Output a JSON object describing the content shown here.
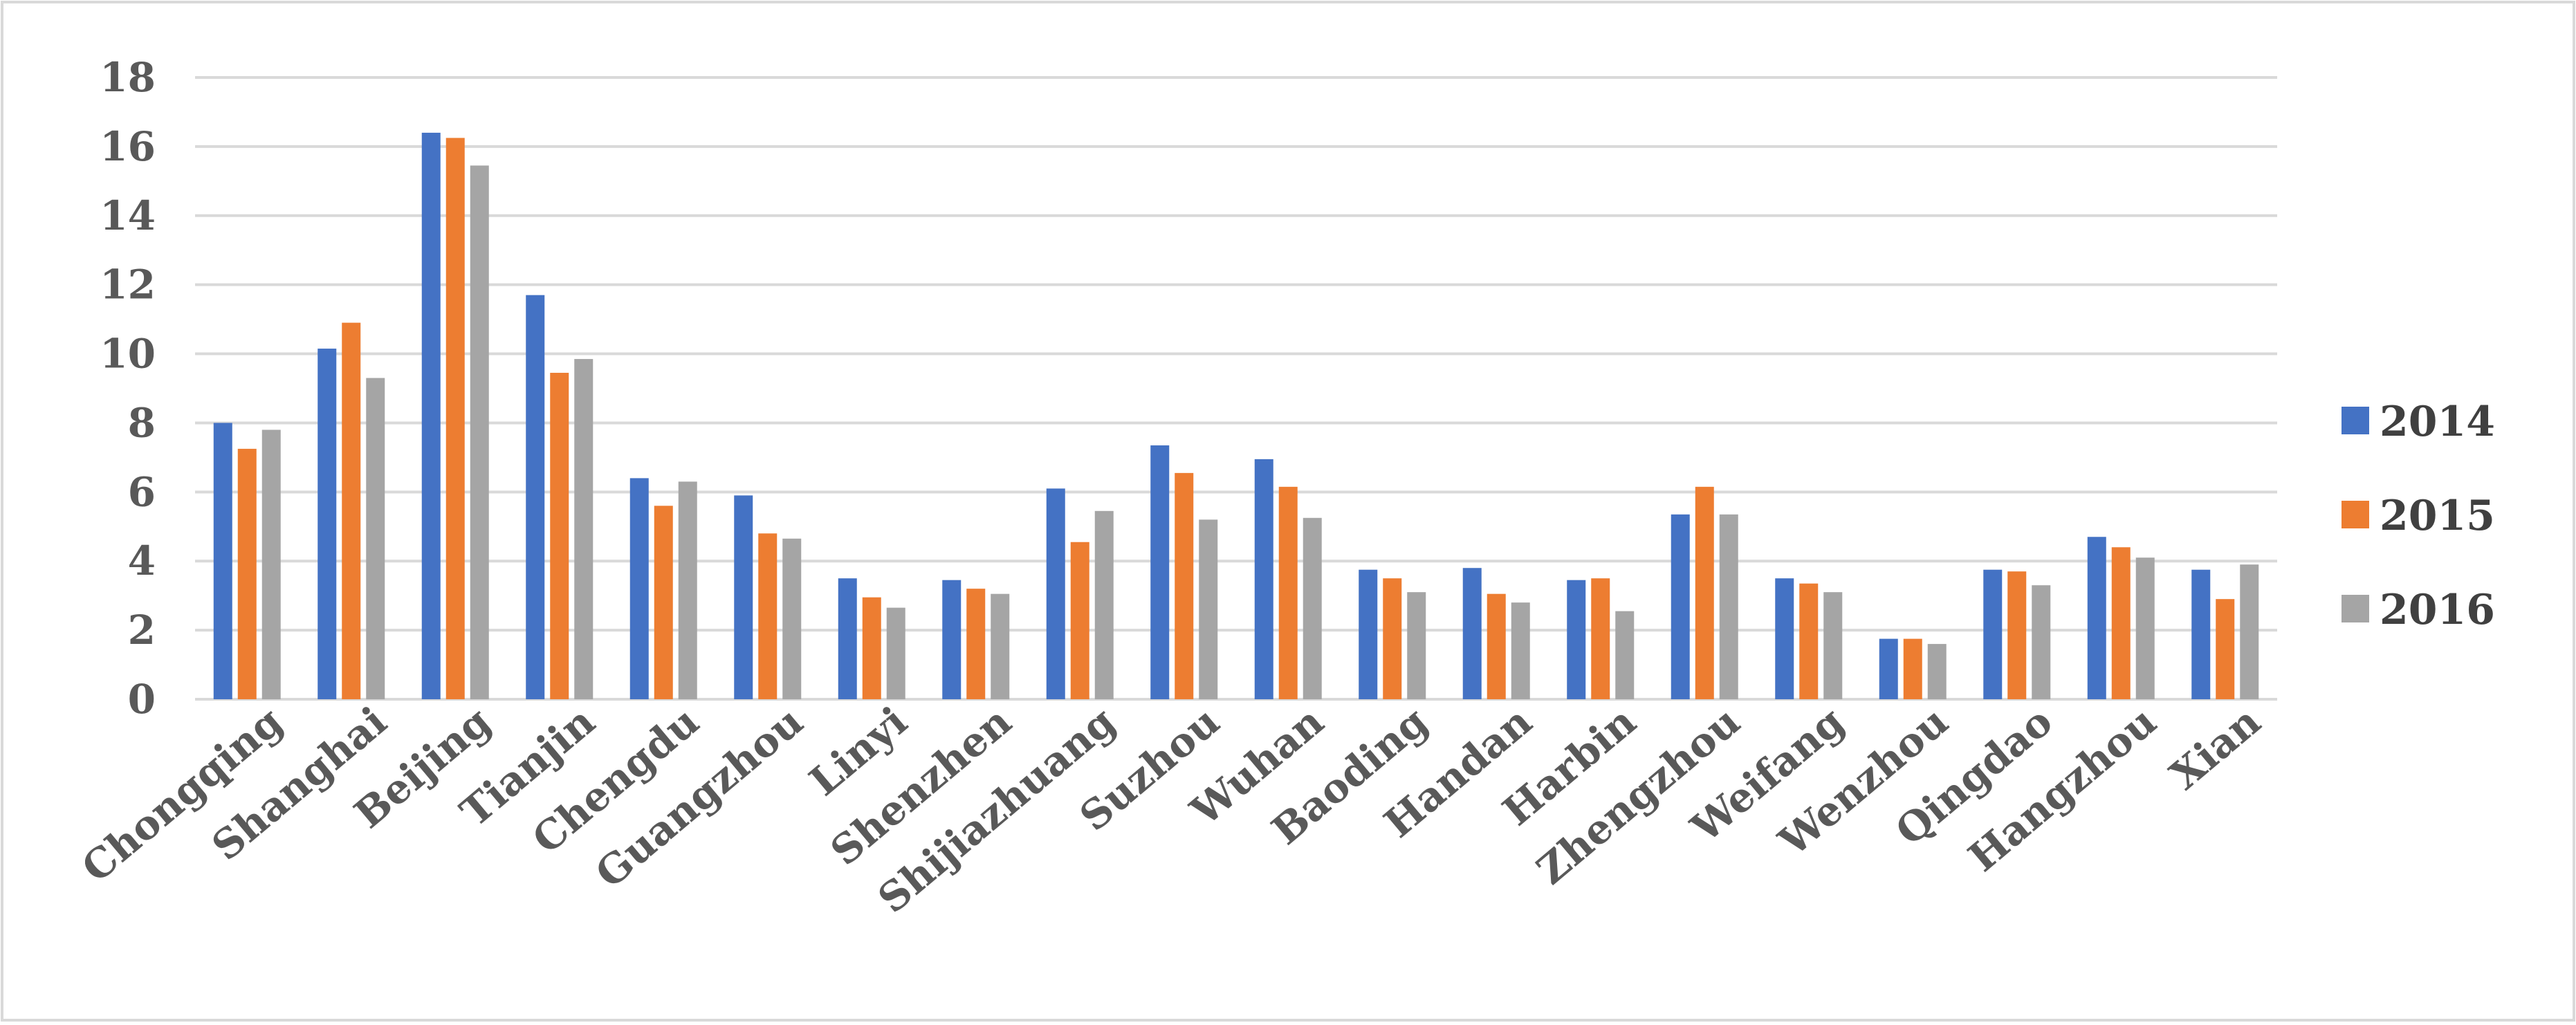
{
  "chart_data": {
    "type": "bar",
    "title": "",
    "xlabel": "",
    "ylabel": "",
    "ylim": [
      0,
      18
    ],
    "yticks": [
      0,
      2,
      4,
      6,
      8,
      10,
      12,
      14,
      16,
      18
    ],
    "grid": true,
    "legend_position": "right",
    "categories": [
      "Chongqing",
      "Shanghai",
      "Beijing",
      "Tianjin",
      "Chengdu",
      "Guangzhou",
      "Linyi",
      "Shenzhen",
      "Shijiazhuang",
      "Suzhou",
      "Wuhan",
      "Baoding",
      "Handan",
      "Harbin",
      "Zhengzhou",
      "Weifang",
      "Wenzhou",
      "Qingdao",
      "Hangzhou",
      "Xian"
    ],
    "series": [
      {
        "name": "2014",
        "color": "#4472c4",
        "values": [
          8.0,
          10.15,
          16.4,
          11.7,
          6.4,
          5.9,
          3.5,
          3.45,
          6.1,
          7.35,
          6.95,
          3.75,
          3.8,
          3.45,
          5.35,
          3.5,
          1.75,
          3.75,
          4.7,
          3.75
        ]
      },
      {
        "name": "2015",
        "color": "#ed7d31",
        "values": [
          7.25,
          10.9,
          16.25,
          9.45,
          5.6,
          4.8,
          2.95,
          3.2,
          4.55,
          6.55,
          6.15,
          3.5,
          3.05,
          3.5,
          6.15,
          3.35,
          1.75,
          3.7,
          4.4,
          2.9
        ]
      },
      {
        "name": "2016",
        "color": "#a5a5a5",
        "values": [
          7.8,
          9.3,
          15.45,
          9.85,
          6.3,
          4.65,
          2.65,
          3.05,
          5.45,
          5.2,
          5.25,
          3.1,
          2.8,
          2.55,
          5.35,
          3.1,
          1.6,
          3.3,
          4.1,
          3.9
        ]
      }
    ]
  }
}
